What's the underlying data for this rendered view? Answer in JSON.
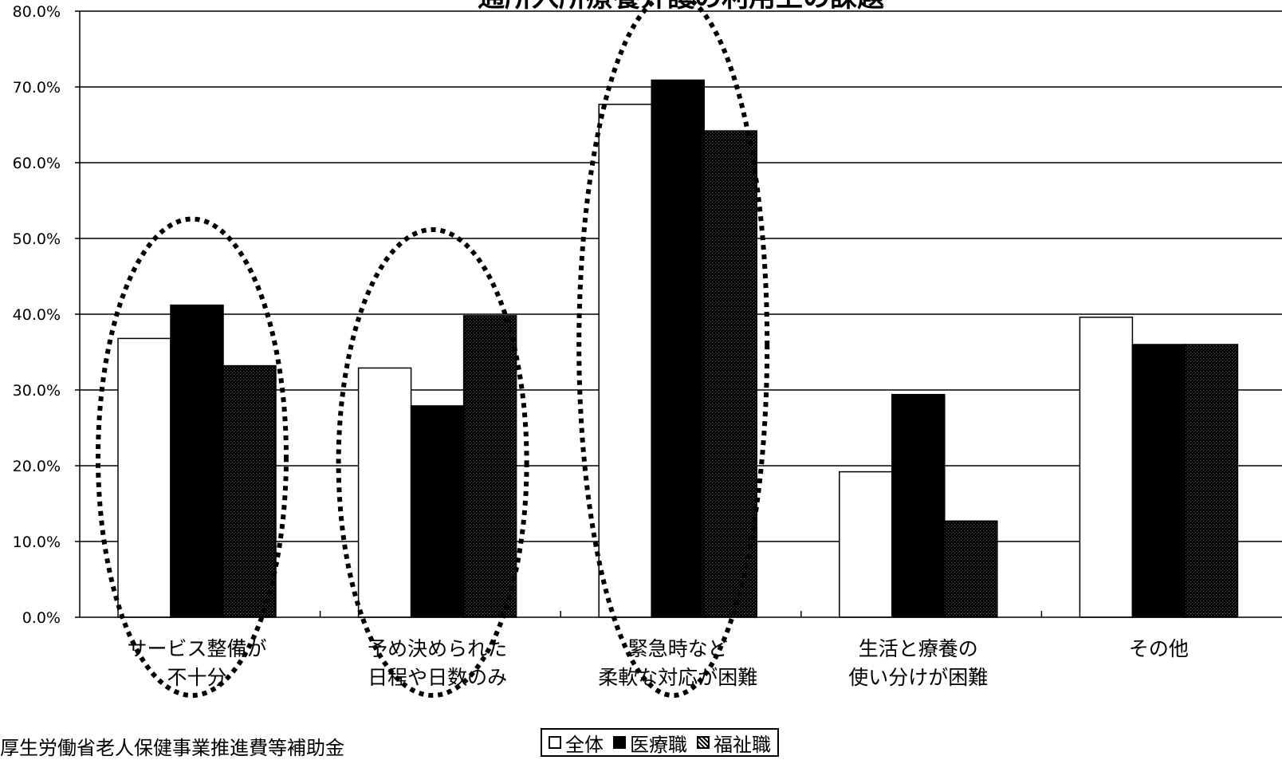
{
  "chart_data": {
    "type": "bar",
    "title": "通所入所療養介護の利用上の課題",
    "categories": [
      [
        "サービス整備が",
        "不十分"
      ],
      [
        "予め決められた",
        "日程や日数のみ"
      ],
      [
        "緊急時など",
        "柔軟な対応が困難"
      ],
      [
        "生活と療養の",
        "使い分けが困難"
      ],
      [
        "その他"
      ]
    ],
    "series": [
      {
        "name": "全体",
        "color": "#ffffff",
        "values": [
          36.8,
          32.9,
          67.7,
          19.2,
          39.6
        ]
      },
      {
        "name": "医療職",
        "color": "#000000",
        "values": [
          41.2,
          27.9,
          70.9,
          29.4,
          36.0
        ]
      },
      {
        "name": "福祉職",
        "color": "#1e1e1e",
        "values": [
          33.2,
          39.8,
          64.2,
          12.7,
          36.0
        ]
      }
    ],
    "ylim": [
      0,
      80
    ],
    "yticks": [
      "0.0%",
      "10.0%",
      "20.0%",
      "30.0%",
      "40.0%",
      "50.0%",
      "60.0%",
      "70.0%",
      "80.0%"
    ],
    "highlighted_categories": [
      0,
      1,
      2
    ],
    "grid": true,
    "legend_position": "bottom"
  },
  "footnote": "厚生労働省老人保健事業推進費等補助金"
}
